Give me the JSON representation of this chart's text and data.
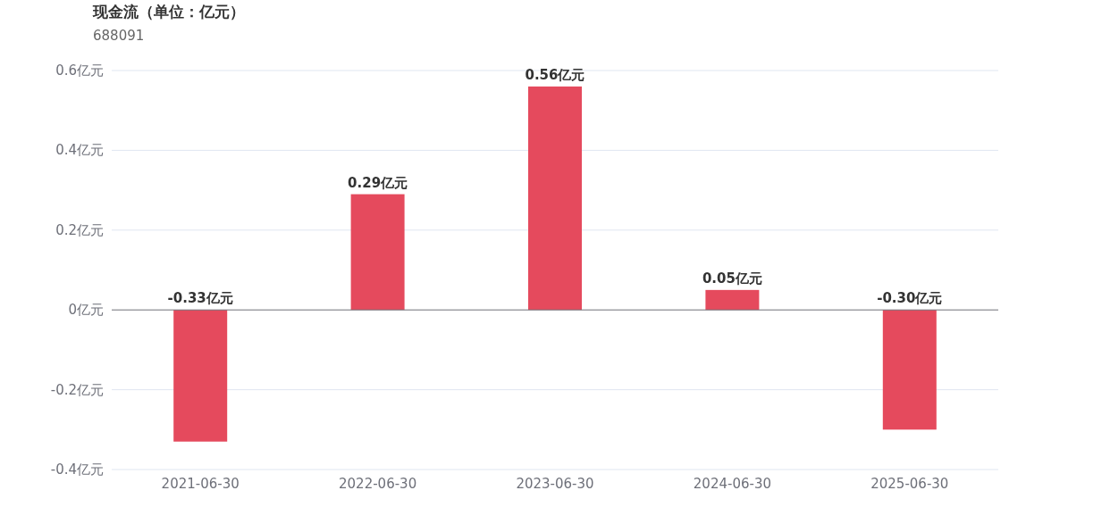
{
  "chart_data": {
    "type": "bar",
    "title": "现金流（单位：亿元）",
    "subtitle": "688091",
    "categories": [
      "2021-06-30",
      "2022-06-30",
      "2023-06-30",
      "2024-06-30",
      "2025-06-30"
    ],
    "values": [
      -0.33,
      0.29,
      0.56,
      0.05,
      -0.3
    ],
    "value_labels": [
      "-0.33亿元",
      "0.29亿元",
      "0.56亿元",
      "0.05亿元",
      "-0.30亿元"
    ],
    "color": "#e54a5d",
    "ylim": [
      -0.4,
      0.6
    ],
    "yticks": [
      {
        "value": -0.4,
        "label": "-0.4亿元"
      },
      {
        "value": -0.2,
        "label": "-0.2亿元"
      },
      {
        "value": 0,
        "label": "0亿元"
      },
      {
        "value": 0.2,
        "label": "0.2亿元"
      },
      {
        "value": 0.4,
        "label": "0.4亿元"
      },
      {
        "value": 0.6,
        "label": "0.6亿元"
      }
    ],
    "grid": "y"
  }
}
